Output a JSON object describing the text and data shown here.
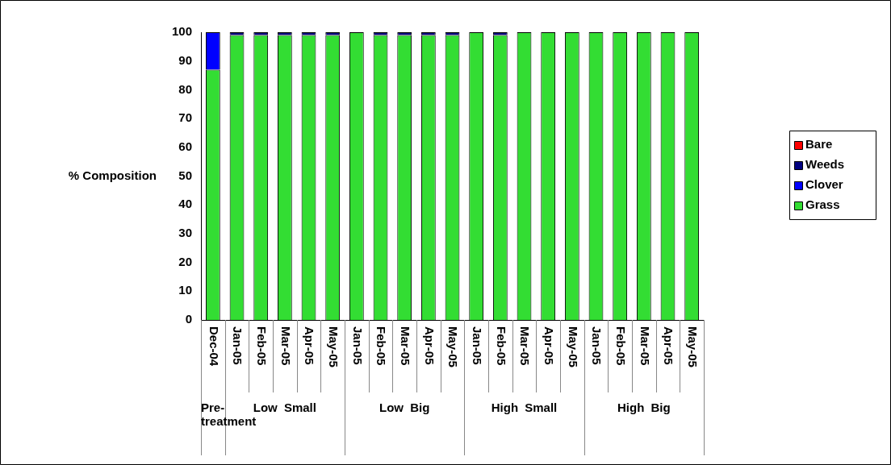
{
  "chart_data": {
    "type": "bar",
    "stacked": true,
    "ylabel": "% Composition",
    "categories": [
      "Dec-04",
      "Jan-05",
      "Feb-05",
      "Mar-05",
      "Apr-05",
      "May-05",
      "Jan-05",
      "Feb-05",
      "Mar-05",
      "Apr-05",
      "May-05",
      "Jan-05",
      "Feb-05",
      "Mar-05",
      "Apr-05",
      "May-05",
      "Jan-05",
      "Feb-05",
      "Mar-05",
      "Apr-05",
      "May-05"
    ],
    "series": [
      {
        "name": "Grass",
        "color": "#33dd33",
        "values": [
          87,
          99,
          99,
          99,
          99,
          99,
          100,
          99,
          99,
          99,
          99,
          100,
          99,
          100,
          100,
          100,
          100,
          100,
          100,
          100,
          100
        ]
      },
      {
        "name": "Clover",
        "color": "#0000ff",
        "values": [
          13,
          0,
          0,
          0,
          0,
          0,
          0,
          0,
          0,
          0,
          0,
          0,
          0,
          0,
          0,
          0,
          0,
          0,
          0,
          0,
          0
        ]
      },
      {
        "name": "Weeds",
        "color": "#000080",
        "values": [
          0,
          1,
          1,
          1,
          1,
          1,
          0,
          1,
          1,
          1,
          1,
          0,
          1,
          0,
          0,
          0,
          0,
          0,
          0,
          0,
          0
        ]
      },
      {
        "name": "Bare",
        "color": "#ff0000",
        "values": [
          0,
          0,
          0,
          0,
          0,
          0,
          0,
          0,
          0,
          0,
          0,
          0,
          0,
          0,
          0,
          0,
          0,
          0,
          0,
          0,
          0
        ]
      }
    ],
    "annotations": [
      "Pre-treatment",
      "Low Small",
      "Low Big",
      "High Small",
      "High Big"
    ],
    "ylim": [
      0,
      100
    ],
    "yticks": [
      0,
      10,
      20,
      30,
      40,
      50,
      60,
      70,
      80,
      90,
      100
    ],
    "grid": false,
    "legend": "right"
  }
}
